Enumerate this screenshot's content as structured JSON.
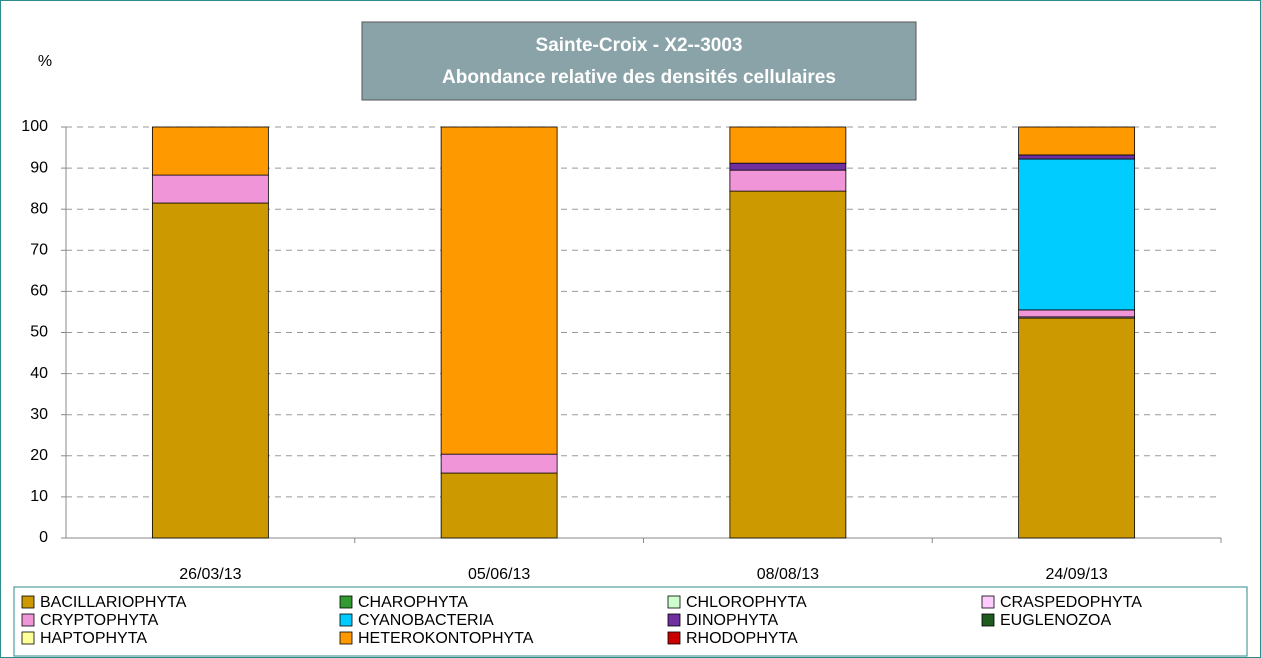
{
  "chart_data": {
    "type": "bar",
    "stacked": true,
    "title": "Sainte-Croix - X2--3003",
    "subtitle": "Abondance relative des densités cellulaires",
    "ylabel": "%",
    "categories": [
      "26/03/13",
      "05/06/13",
      "08/08/13",
      "24/09/13"
    ],
    "series": [
      {
        "name": "BACILLARIOPHYTA",
        "color": "#cc9900",
        "values": [
          81.5,
          15.8,
          84.4,
          53.5
        ]
      },
      {
        "name": "CHAROPHYTA",
        "color": "#339933",
        "values": [
          0,
          0,
          0,
          0
        ]
      },
      {
        "name": "CHLOROPHYTA",
        "color": "#ccffcc",
        "values": [
          0,
          0,
          0,
          0
        ]
      },
      {
        "name": "CRASPEDOPHYTA",
        "color": "#ffccff",
        "values": [
          0,
          0,
          0,
          0.3
        ]
      },
      {
        "name": "CRYPTOPHYTA",
        "color": "#f096d8",
        "values": [
          6.8,
          4.6,
          5.1,
          1.7
        ]
      },
      {
        "name": "CYANOBACTERIA",
        "color": "#00ccff",
        "values": [
          0,
          0,
          0,
          36.7
        ]
      },
      {
        "name": "DINOPHYTA",
        "color": "#7030a0",
        "values": [
          0,
          0,
          1.7,
          1.0
        ]
      },
      {
        "name": "EUGLENOZOA",
        "color": "#1e5b1e",
        "values": [
          0,
          0,
          0,
          0
        ]
      },
      {
        "name": "HAPTOPHYTA",
        "color": "#ffff99",
        "values": [
          0,
          0,
          0,
          0
        ]
      },
      {
        "name": "HETEROKONTOPHYTA",
        "color": "#ff9900",
        "values": [
          11.7,
          79.6,
          8.8,
          6.8
        ]
      },
      {
        "name": "RHODOPHYTA",
        "color": "#cc0000",
        "values": [
          0,
          0,
          0,
          0
        ]
      }
    ],
    "ylim": [
      0,
      100
    ],
    "yticks": [
      0,
      10,
      20,
      30,
      40,
      50,
      60,
      70,
      80,
      90,
      100
    ],
    "grid": true
  }
}
